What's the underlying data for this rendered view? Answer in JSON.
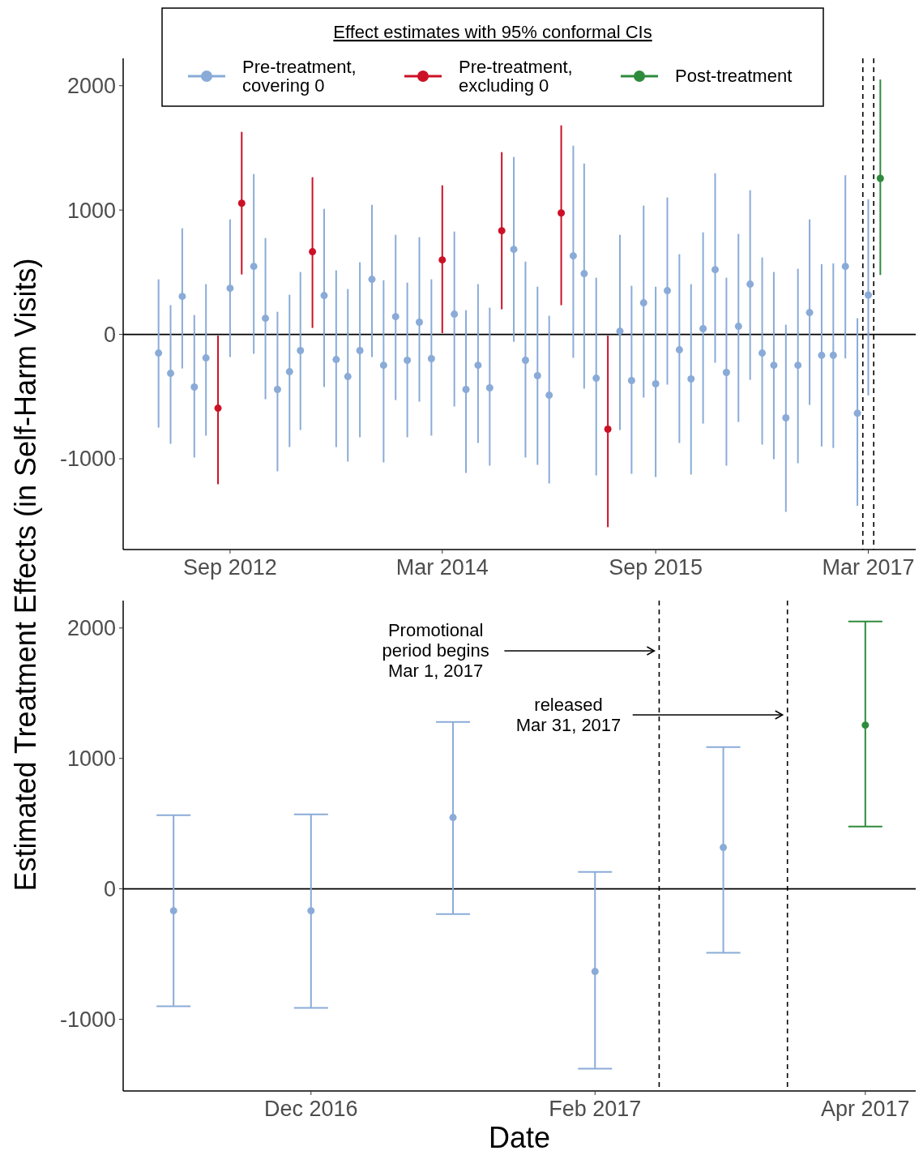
{
  "chart_data": [
    {
      "type": "scatter",
      "ylabel": "Estimated Treatment Effects (in Self-Harm Visits)",
      "legend_title": "Effect estimates with 95% conformal CIs",
      "legend": "top",
      "marker": "circle",
      "xlim": [
        "2011-12-01",
        "2017-07-01"
      ],
      "xticks": [
        {
          "value": "2012-09",
          "label": "Sep 2012"
        },
        {
          "value": "2014-03",
          "label": "Mar 2014"
        },
        {
          "value": "2015-09",
          "label": "Sep 2015"
        },
        {
          "value": "2017-03",
          "label": "Mar 2017"
        }
      ],
      "ylim": [
        -1730,
        2220
      ],
      "yticks": [
        -1000,
        0,
        1000,
        2000
      ],
      "grid": false,
      "ref_lines": [
        {
          "axis": "y",
          "value": 0,
          "color": "#000000",
          "line_style": "solid"
        },
        {
          "axis": "x",
          "value": "2017-02-15",
          "color": "#000000",
          "line_style": "dashed"
        },
        {
          "axis": "x",
          "value": "2017-03-15",
          "color": "#000000",
          "line_style": "dashed"
        }
      ],
      "series": [
        {
          "name": "Pre-treatment, covering 0",
          "color": "#8aabd8",
          "x": [
            "2012-03",
            "2012-04",
            "2012-05",
            "2012-06",
            "2012-07",
            "2012-09",
            "2012-11",
            "2012-12",
            "2013-01",
            "2013-02",
            "2013-03",
            "2013-05",
            "2013-06",
            "2013-07",
            "2013-08",
            "2013-09",
            "2013-10",
            "2013-11",
            "2013-12",
            "2014-01",
            "2014-02",
            "2014-04",
            "2014-05",
            "2014-06",
            "2014-07",
            "2014-09",
            "2014-10",
            "2014-11",
            "2014-12",
            "2015-02",
            "2015-03",
            "2015-04",
            "2015-06",
            "2015-07",
            "2015-08",
            "2015-09",
            "2015-10",
            "2015-11",
            "2015-12",
            "2016-01",
            "2016-02",
            "2016-03",
            "2016-04",
            "2016-05",
            "2016-06",
            "2016-07",
            "2016-08",
            "2016-09",
            "2016-10",
            "2016-11",
            "2016-12",
            "2017-01",
            "2017-02",
            "2017-03"
          ],
          "values": [
            -150,
            -313,
            306,
            -423,
            -189,
            371,
            547,
            130,
            -443,
            -300,
            -130,
            313,
            -202,
            -339,
            -130,
            443,
            -248,
            143,
            -208,
            98,
            -195,
            163,
            -443,
            -248,
            -430,
            684,
            -208,
            -332,
            -489,
            632,
            489,
            -352,
            26,
            -371,
            254,
            -397,
            352,
            -124,
            -358,
            46,
            521,
            -306,
            65,
            404,
            -150,
            -248,
            -671,
            -248,
            176,
            -168,
            -168,
            547,
            -634,
            317
          ],
          "errors": [
            [
              -749,
              443
            ],
            [
              -880,
              235
            ],
            [
              -274,
              853
            ],
            [
              -990,
              156
            ],
            [
              -814,
              404
            ],
            [
              -182,
              925
            ],
            [
              -156,
              1290
            ],
            [
              -521,
              775
            ],
            [
              -1101,
              182
            ],
            [
              -906,
              319
            ],
            [
              -769,
              502
            ],
            [
              -423,
              1010
            ],
            [
              -906,
              515
            ],
            [
              -1023,
              365
            ],
            [
              -827,
              580
            ],
            [
              -182,
              1042
            ],
            [
              -1029,
              436
            ],
            [
              -528,
              801
            ],
            [
              -827,
              417
            ],
            [
              -541,
              782
            ],
            [
              -814,
              443
            ],
            [
              -580,
              827
            ],
            [
              -1114,
              195
            ],
            [
              -873,
              404
            ],
            [
              -1055,
              215
            ],
            [
              -59,
              1427
            ],
            [
              -990,
              586
            ],
            [
              -1049,
              384
            ],
            [
              -1199,
              150
            ],
            [
              -189,
              1518
            ],
            [
              -436,
              1375
            ],
            [
              -1134,
              456
            ],
            [
              -769,
              801
            ],
            [
              -1121,
              391
            ],
            [
              -508,
              1036
            ],
            [
              -1147,
              384
            ],
            [
              -404,
              1101
            ],
            [
              -873,
              645
            ],
            [
              -1127,
              404
            ],
            [
              -717,
              821
            ],
            [
              -228,
              1296
            ],
            [
              -1055,
              456
            ],
            [
              -704,
              808
            ],
            [
              -365,
              1160
            ],
            [
              -886,
              619
            ],
            [
              -1003,
              502
            ],
            [
              -1427,
              78
            ],
            [
              -1036,
              528
            ],
            [
              -567,
              925
            ],
            [
              -901,
              565
            ],
            [
              -913,
              571
            ],
            [
              -193,
              1280
            ],
            [
              -1379,
              130
            ],
            [
              -491,
              1087
            ]
          ]
        },
        {
          "name": "Pre-treatment, excluding 0",
          "color": "#cc1126",
          "x": [
            "2012-08",
            "2012-10",
            "2013-04",
            "2014-03",
            "2014-08",
            "2015-01",
            "2015-05"
          ],
          "values": [
            -593,
            1055,
            665,
            599,
            834,
            977,
            -762
          ],
          "errors": [
            [
              -1205,
              -10
            ],
            [
              482,
              1629
            ],
            [
              52,
              1264
            ],
            [
              10,
              1199
            ],
            [
              202,
              1466
            ],
            [
              235,
              1681
            ],
            [
              -1550,
              -10
            ]
          ]
        },
        {
          "name": "Post-treatment",
          "color": "#2e8b3c",
          "x": [
            "2017-04"
          ],
          "values": [
            1255
          ],
          "errors": [
            [
              478,
              2050
            ]
          ]
        }
      ]
    },
    {
      "type": "scatter",
      "xlabel": "Date",
      "legend": false,
      "marker": "circle",
      "xlim": [
        "2016-10-21",
        "2017-04-12"
      ],
      "xticks": [
        {
          "value": "2016-12",
          "label": "Dec 2016"
        },
        {
          "value": "2017-02",
          "label": "Feb 2017"
        },
        {
          "value": "2017-04",
          "label": "Apr 2017"
        }
      ],
      "ylim": [
        -1550,
        2210
      ],
      "yticks": [
        -1000,
        0,
        1000,
        2000
      ],
      "grid": false,
      "ref_lines": [
        {
          "axis": "y",
          "value": 0,
          "color": "#000000",
          "line_style": "solid"
        },
        {
          "axis": "x",
          "value": "2017-02-15",
          "color": "#000000",
          "line_style": "dashed"
        },
        {
          "axis": "x",
          "value": "2017-03-15",
          "color": "#000000",
          "line_style": "dashed"
        }
      ],
      "annotations": [
        "Promotional\nperiod begins\nMar 1, 2017",
        "released\nMar 31, 2017"
      ],
      "series": [
        {
          "color": "#8aabd8",
          "x": [
            "2016-11",
            "2016-12",
            "2017-01",
            "2017-02",
            "2017-03"
          ],
          "values": [
            -168,
            -168,
            547,
            -634,
            317
          ],
          "errors": [
            [
              -901,
              565
            ],
            [
              -913,
              571
            ],
            [
              -193,
              1280
            ],
            [
              -1379,
              130
            ],
            [
              -491,
              1087
            ]
          ]
        },
        {
          "color": "#2e8b3c",
          "x": [
            "2017-04"
          ],
          "values": [
            1255
          ],
          "errors": [
            [
              478,
              2050
            ]
          ]
        }
      ]
    }
  ]
}
